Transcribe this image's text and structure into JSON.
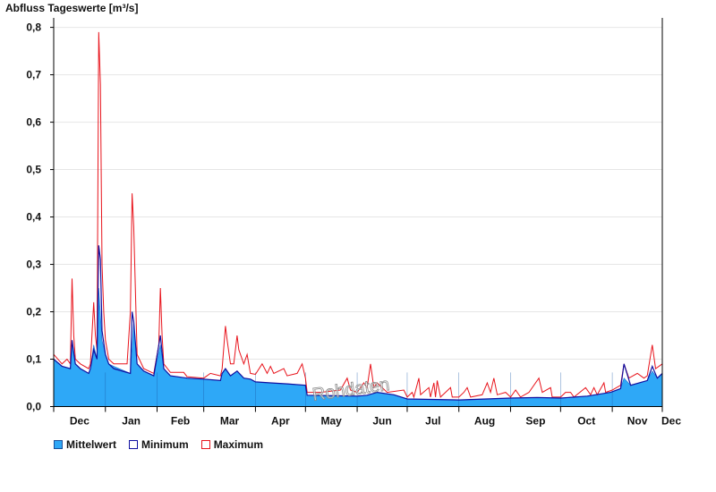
{
  "chart_data": {
    "type": "area",
    "title": "Abfluss Tageswerte [m³/s]",
    "watermark": "Rohdaten",
    "ylim": [
      0,
      0.82
    ],
    "y_ticks": [
      "0,0",
      "0,1",
      "0,2",
      "0,3",
      "0,4",
      "0,5",
      "0,6",
      "0,7",
      "0,8"
    ],
    "y_tick_values": [
      0,
      0.1,
      0.2,
      0.3,
      0.4,
      0.5,
      0.6,
      0.7,
      0.8
    ],
    "x_month_labels": [
      "Dec",
      "Jan",
      "Feb",
      "Mar",
      "Apr",
      "May",
      "Jun",
      "Jul",
      "Aug",
      "Sep",
      "Oct",
      "Nov",
      "Dec"
    ],
    "month_boundaries": [
      0,
      31,
      62,
      90,
      121,
      151,
      182,
      212,
      243,
      274,
      304,
      335,
      365
    ],
    "grid": true,
    "legend_position": "bottom-left",
    "colors": {
      "mean_fill": "#2ea8f7",
      "minimum": "#1010a0",
      "maximum": "#e8141c"
    },
    "series": [
      {
        "name": "Mittelwert",
        "color": "#2ea8f7",
        "points": [
          [
            0,
            0.1
          ],
          [
            5,
            0.085
          ],
          [
            10,
            0.08
          ],
          [
            11,
            0.14
          ],
          [
            13,
            0.09
          ],
          [
            16,
            0.08
          ],
          [
            21,
            0.07
          ],
          [
            22,
            0.08
          ],
          [
            24,
            0.13
          ],
          [
            26,
            0.1
          ],
          [
            27,
            0.25
          ],
          [
            29,
            0.14
          ],
          [
            31,
            0.11
          ],
          [
            33,
            0.09
          ],
          [
            36,
            0.085
          ],
          [
            46,
            0.07
          ],
          [
            48,
            0.18
          ],
          [
            50,
            0.09
          ],
          [
            54,
            0.075
          ],
          [
            60,
            0.065
          ],
          [
            64,
            0.13
          ],
          [
            66,
            0.08
          ],
          [
            70,
            0.065
          ],
          [
            80,
            0.06
          ],
          [
            90,
            0.058
          ],
          [
            100,
            0.055
          ],
          [
            101,
            0.07
          ],
          [
            103,
            0.08
          ],
          [
            106,
            0.065
          ],
          [
            110,
            0.075
          ],
          [
            114,
            0.06
          ],
          [
            118,
            0.058
          ],
          [
            121,
            0.052
          ],
          [
            130,
            0.05
          ],
          [
            140,
            0.048
          ],
          [
            151,
            0.045
          ],
          [
            152,
            0.024
          ],
          [
            182,
            0.022
          ],
          [
            188,
            0.024
          ],
          [
            194,
            0.03
          ],
          [
            204,
            0.025
          ],
          [
            212,
            0.016
          ],
          [
            243,
            0.014
          ],
          [
            274,
            0.018
          ],
          [
            290,
            0.019
          ],
          [
            304,
            0.018
          ],
          [
            320,
            0.022
          ],
          [
            334,
            0.03
          ],
          [
            340,
            0.038
          ],
          [
            342,
            0.06
          ],
          [
            346,
            0.045
          ],
          [
            356,
            0.055
          ],
          [
            359,
            0.075
          ],
          [
            362,
            0.06
          ],
          [
            365,
            0.07
          ]
        ]
      },
      {
        "name": "Minimum",
        "color": "#1010a0",
        "points": [
          [
            0,
            0.1
          ],
          [
            5,
            0.085
          ],
          [
            10,
            0.08
          ],
          [
            11,
            0.14
          ],
          [
            13,
            0.09
          ],
          [
            16,
            0.08
          ],
          [
            21,
            0.07
          ],
          [
            22,
            0.08
          ],
          [
            24,
            0.12
          ],
          [
            26,
            0.1
          ],
          [
            27,
            0.34
          ],
          [
            28,
            0.31
          ],
          [
            29,
            0.16
          ],
          [
            31,
            0.11
          ],
          [
            33,
            0.09
          ],
          [
            36,
            0.08
          ],
          [
            46,
            0.07
          ],
          [
            47,
            0.2
          ],
          [
            48,
            0.18
          ],
          [
            50,
            0.09
          ],
          [
            54,
            0.075
          ],
          [
            60,
            0.065
          ],
          [
            64,
            0.15
          ],
          [
            66,
            0.08
          ],
          [
            70,
            0.065
          ],
          [
            80,
            0.06
          ],
          [
            90,
            0.058
          ],
          [
            100,
            0.055
          ],
          [
            101,
            0.07
          ],
          [
            103,
            0.08
          ],
          [
            106,
            0.065
          ],
          [
            110,
            0.075
          ],
          [
            114,
            0.06
          ],
          [
            118,
            0.058
          ],
          [
            121,
            0.052
          ],
          [
            130,
            0.05
          ],
          [
            140,
            0.048
          ],
          [
            151,
            0.045
          ],
          [
            152,
            0.024
          ],
          [
            182,
            0.022
          ],
          [
            188,
            0.024
          ],
          [
            194,
            0.03
          ],
          [
            204,
            0.025
          ],
          [
            212,
            0.016
          ],
          [
            243,
            0.014
          ],
          [
            274,
            0.018
          ],
          [
            290,
            0.019
          ],
          [
            304,
            0.018
          ],
          [
            320,
            0.022
          ],
          [
            334,
            0.03
          ],
          [
            340,
            0.038
          ],
          [
            342,
            0.09
          ],
          [
            346,
            0.045
          ],
          [
            356,
            0.055
          ],
          [
            359,
            0.085
          ],
          [
            362,
            0.06
          ],
          [
            365,
            0.07
          ]
        ]
      },
      {
        "name": "Maximum",
        "color": "#e8141c",
        "points": [
          [
            0,
            0.11
          ],
          [
            5,
            0.09
          ],
          [
            8,
            0.1
          ],
          [
            10,
            0.09
          ],
          [
            11,
            0.27
          ],
          [
            12,
            0.15
          ],
          [
            13,
            0.1
          ],
          [
            16,
            0.09
          ],
          [
            21,
            0.08
          ],
          [
            22,
            0.09
          ],
          [
            24,
            0.22
          ],
          [
            25,
            0.15
          ],
          [
            26,
            0.12
          ],
          [
            27,
            0.79
          ],
          [
            28,
            0.68
          ],
          [
            29,
            0.3
          ],
          [
            30,
            0.2
          ],
          [
            31,
            0.14
          ],
          [
            33,
            0.1
          ],
          [
            36,
            0.09
          ],
          [
            44,
            0.09
          ],
          [
            46,
            0.2
          ],
          [
            47,
            0.45
          ],
          [
            48,
            0.38
          ],
          [
            50,
            0.11
          ],
          [
            54,
            0.08
          ],
          [
            60,
            0.07
          ],
          [
            63,
            0.13
          ],
          [
            64,
            0.25
          ],
          [
            65,
            0.15
          ],
          [
            66,
            0.09
          ],
          [
            70,
            0.072
          ],
          [
            78,
            0.072
          ],
          [
            80,
            0.063
          ],
          [
            90,
            0.06
          ],
          [
            94,
            0.07
          ],
          [
            100,
            0.065
          ],
          [
            101,
            0.08
          ],
          [
            103,
            0.17
          ],
          [
            104,
            0.14
          ],
          [
            106,
            0.09
          ],
          [
            108,
            0.09
          ],
          [
            110,
            0.15
          ],
          [
            111,
            0.12
          ],
          [
            114,
            0.09
          ],
          [
            116,
            0.11
          ],
          [
            118,
            0.07
          ],
          [
            121,
            0.068
          ],
          [
            125,
            0.09
          ],
          [
            128,
            0.07
          ],
          [
            130,
            0.085
          ],
          [
            132,
            0.07
          ],
          [
            138,
            0.08
          ],
          [
            140,
            0.065
          ],
          [
            146,
            0.07
          ],
          [
            149,
            0.09
          ],
          [
            151,
            0.06
          ],
          [
            152,
            0.03
          ],
          [
            160,
            0.03
          ],
          [
            172,
            0.035
          ],
          [
            176,
            0.06
          ],
          [
            178,
            0.035
          ],
          [
            182,
            0.03
          ],
          [
            186,
            0.05
          ],
          [
            188,
            0.04
          ],
          [
            190,
            0.09
          ],
          [
            192,
            0.04
          ],
          [
            194,
            0.05
          ],
          [
            200,
            0.03
          ],
          [
            210,
            0.035
          ],
          [
            212,
            0.02
          ],
          [
            215,
            0.03
          ],
          [
            216,
            0.02
          ],
          [
            219,
            0.06
          ],
          [
            220,
            0.025
          ],
          [
            225,
            0.04
          ],
          [
            226,
            0.02
          ],
          [
            228,
            0.05
          ],
          [
            229,
            0.02
          ],
          [
            230,
            0.055
          ],
          [
            232,
            0.02
          ],
          [
            238,
            0.04
          ],
          [
            239,
            0.02
          ],
          [
            243,
            0.02
          ],
          [
            246,
            0.03
          ],
          [
            248,
            0.04
          ],
          [
            250,
            0.02
          ],
          [
            257,
            0.025
          ],
          [
            260,
            0.05
          ],
          [
            262,
            0.03
          ],
          [
            264,
            0.06
          ],
          [
            266,
            0.025
          ],
          [
            271,
            0.03
          ],
          [
            274,
            0.02
          ],
          [
            277,
            0.035
          ],
          [
            280,
            0.02
          ],
          [
            285,
            0.03
          ],
          [
            291,
            0.06
          ],
          [
            293,
            0.03
          ],
          [
            298,
            0.04
          ],
          [
            299,
            0.02
          ],
          [
            304,
            0.02
          ],
          [
            307,
            0.03
          ],
          [
            310,
            0.03
          ],
          [
            312,
            0.02
          ],
          [
            319,
            0.04
          ],
          [
            322,
            0.025
          ],
          [
            324,
            0.04
          ],
          [
            326,
            0.025
          ],
          [
            330,
            0.05
          ],
          [
            331,
            0.03
          ],
          [
            335,
            0.035
          ],
          [
            340,
            0.045
          ],
          [
            342,
            0.09
          ],
          [
            345,
            0.06
          ],
          [
            350,
            0.07
          ],
          [
            354,
            0.06
          ],
          [
            356,
            0.065
          ],
          [
            359,
            0.13
          ],
          [
            361,
            0.08
          ],
          [
            365,
            0.09
          ]
        ]
      }
    ]
  }
}
